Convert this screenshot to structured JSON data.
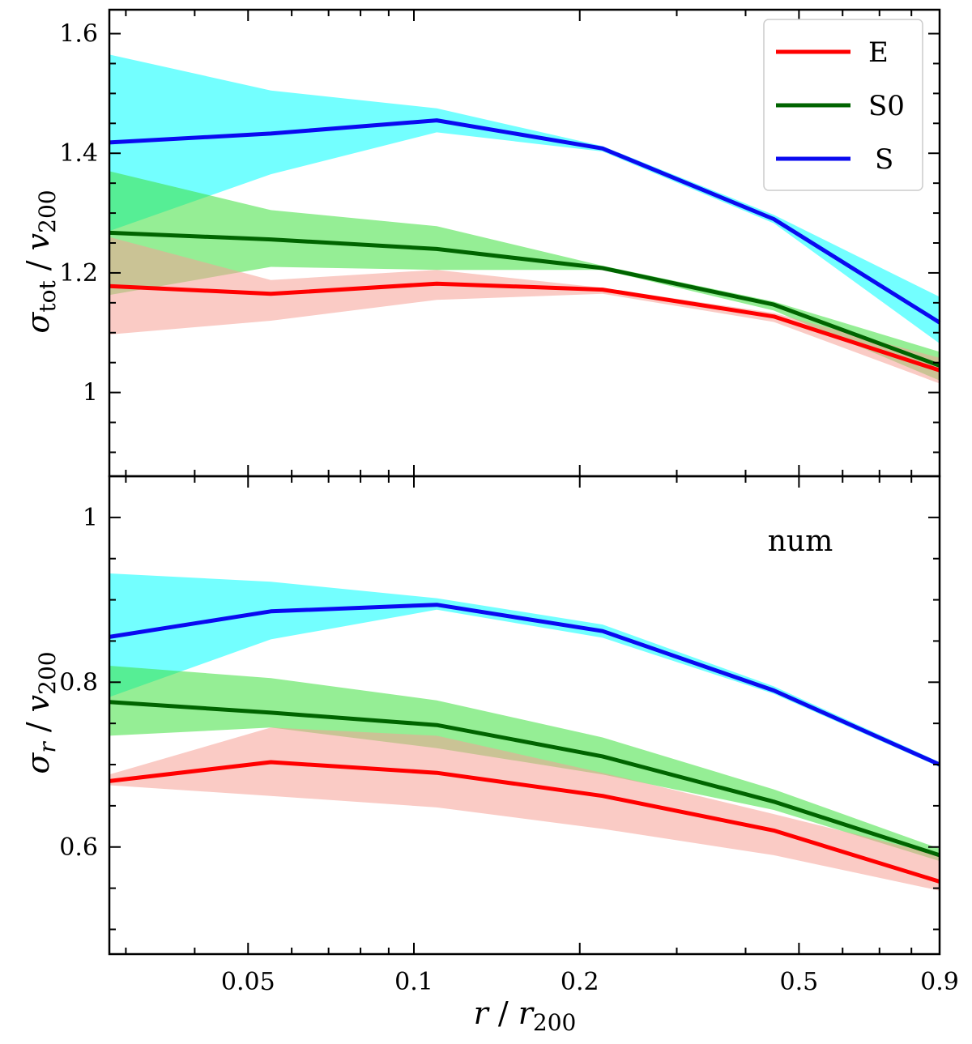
{
  "chart_data": [
    {
      "type": "line",
      "panel": "top",
      "scale_x": "log",
      "xlim": [
        0.028,
        0.9
      ],
      "ylim": [
        0.86,
        1.64
      ],
      "ylabel_symbol": "σ",
      "ylabel_sub": "tot",
      "ylabel_tail": " / ",
      "ylabel_v": "v",
      "ylabel_vsub": "200",
      "yticks": [
        1.0,
        1.2,
        1.4,
        1.6
      ],
      "ytick_labels": [
        "1",
        "1.2",
        "1.4",
        "1.6"
      ],
      "x": [
        0.028,
        0.055,
        0.11,
        0.22,
        0.45,
        0.9
      ],
      "series": [
        {
          "name": "S",
          "line_color": "#0a0af0",
          "band_color": "#00ffff",
          "values": [
            1.418,
            1.433,
            1.455,
            1.408,
            1.29,
            1.117
          ],
          "lower": [
            1.27,
            1.365,
            1.435,
            1.403,
            1.283,
            1.082
          ],
          "upper": [
            1.565,
            1.505,
            1.475,
            1.412,
            1.297,
            1.16
          ]
        },
        {
          "name": "S0",
          "line_color": "#006400",
          "band_color": "#3ee03e",
          "values": [
            1.267,
            1.256,
            1.24,
            1.208,
            1.147,
            1.045
          ],
          "lower": [
            1.163,
            1.21,
            1.205,
            1.205,
            1.137,
            1.02
          ],
          "upper": [
            1.37,
            1.305,
            1.278,
            1.212,
            1.152,
            1.068
          ]
        },
        {
          "name": "E",
          "line_color": "#ff0000",
          "band_color": "#f5a095",
          "values": [
            1.178,
            1.165,
            1.182,
            1.172,
            1.127,
            1.037
          ],
          "lower": [
            1.097,
            1.12,
            1.155,
            1.165,
            1.118,
            1.015
          ],
          "upper": [
            1.26,
            1.188,
            1.205,
            1.175,
            1.133,
            1.058
          ]
        }
      ],
      "legend": {
        "placement": "top-right",
        "entries": [
          {
            "label": "E",
            "color": "#ff0000"
          },
          {
            "label": "S0",
            "color": "#006400"
          },
          {
            "label": "S",
            "color": "#0a0af0"
          }
        ]
      }
    },
    {
      "type": "line",
      "panel": "bottom",
      "scale_x": "log",
      "xlim": [
        0.028,
        0.9
      ],
      "ylim": [
        0.47,
        1.05
      ],
      "ylabel_symbol": "σ",
      "ylabel_sub": "r",
      "ylabel_tail": " / ",
      "ylabel_v": "v",
      "ylabel_vsub": "200",
      "yticks": [
        0.6,
        0.8,
        1.0
      ],
      "ytick_labels": [
        "0.6",
        "0.8",
        "1"
      ],
      "xticks": [
        0.05,
        0.1,
        0.2,
        0.5,
        0.9
      ],
      "xtick_labels": [
        "0.05",
        "0.1",
        "0.2",
        "0.5",
        "0.9"
      ],
      "xlabel_r": "r",
      "xlabel_sep": " / ",
      "xlabel_r2": "r",
      "xlabel_sub": "200",
      "annotation": "num",
      "x": [
        0.028,
        0.055,
        0.11,
        0.22,
        0.45,
        0.9
      ],
      "series": [
        {
          "name": "S",
          "line_color": "#0a0af0",
          "band_color": "#00ffff",
          "values": [
            0.855,
            0.886,
            0.894,
            0.862,
            0.79,
            0.7
          ],
          "lower": [
            0.782,
            0.852,
            0.888,
            0.854,
            0.786,
            0.697
          ],
          "upper": [
            0.932,
            0.922,
            0.902,
            0.87,
            0.795,
            0.703
          ]
        },
        {
          "name": "S0",
          "line_color": "#006400",
          "band_color": "#3ee03e",
          "values": [
            0.776,
            0.763,
            0.748,
            0.71,
            0.655,
            0.59
          ],
          "lower": [
            0.735,
            0.745,
            0.72,
            0.688,
            0.645,
            0.583
          ],
          "upper": [
            0.82,
            0.805,
            0.778,
            0.733,
            0.67,
            0.598
          ]
        },
        {
          "name": "E",
          "line_color": "#ff0000",
          "band_color": "#f5a095",
          "values": [
            0.68,
            0.703,
            0.69,
            0.662,
            0.62,
            0.558
          ],
          "lower": [
            0.675,
            0.662,
            0.648,
            0.622,
            0.59,
            0.547
          ],
          "upper": [
            0.688,
            0.745,
            0.735,
            0.69,
            0.64,
            0.59
          ]
        }
      ]
    }
  ]
}
